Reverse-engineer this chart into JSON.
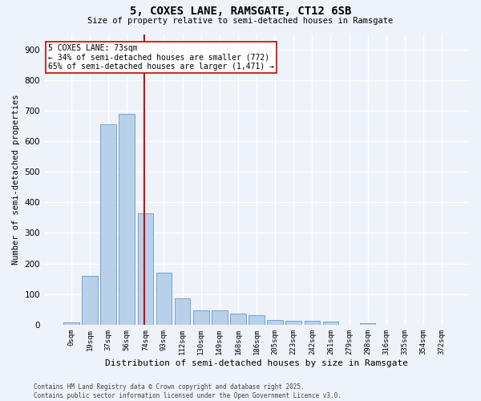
{
  "title_line1": "5, COXES LANE, RAMSGATE, CT12 6SB",
  "title_line2": "Size of property relative to semi-detached houses in Ramsgate",
  "xlabel": "Distribution of semi-detached houses by size in Ramsgate",
  "ylabel": "Number of semi-detached properties",
  "bar_labels": [
    "0sqm",
    "19sqm",
    "37sqm",
    "56sqm",
    "74sqm",
    "93sqm",
    "112sqm",
    "130sqm",
    "149sqm",
    "168sqm",
    "186sqm",
    "205sqm",
    "223sqm",
    "242sqm",
    "261sqm",
    "279sqm",
    "298sqm",
    "316sqm",
    "335sqm",
    "354sqm",
    "372sqm"
  ],
  "bar_values": [
    8,
    160,
    655,
    690,
    365,
    170,
    85,
    47,
    47,
    35,
    30,
    15,
    13,
    13,
    10,
    0,
    5,
    0,
    0,
    0,
    0
  ],
  "bar_color": "#b8d0ea",
  "bar_edge_color": "#6699cc",
  "annotation_line1": "5 COXES LANE: 73sqm",
  "annotation_line2": "← 34% of semi-detached houses are smaller (772)",
  "annotation_line3": "65% of semi-detached houses are larger (1,471) →",
  "red_line_color": "#cc0000",
  "footnote_line1": "Contains HM Land Registry data © Crown copyright and database right 2025.",
  "footnote_line2": "Contains public sector information licensed under the Open Government Licence v3.0.",
  "bg_color": "#eef2f9",
  "plot_bg_color": "#eef2f9",
  "grid_color": "#ffffff",
  "ylim": [
    0,
    950
  ],
  "yticks": [
    0,
    100,
    200,
    300,
    400,
    500,
    600,
    700,
    800,
    900
  ]
}
